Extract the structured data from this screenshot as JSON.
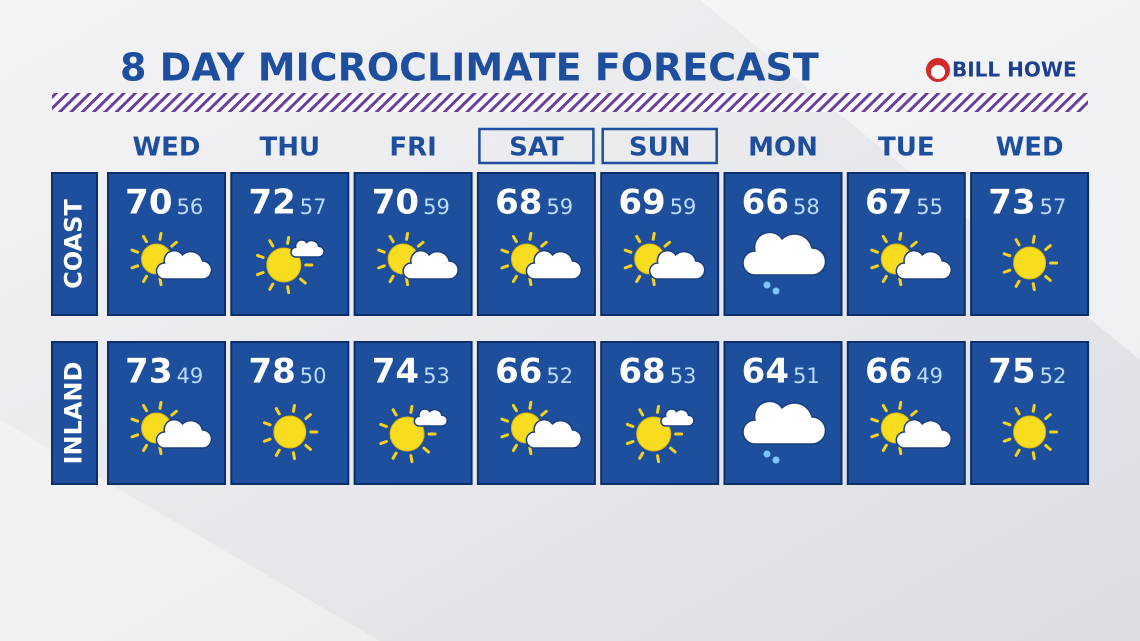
{
  "header": {
    "title": "8 DAY MICROCLIMATE FORECAST",
    "logo": "BILL HOWE"
  },
  "days": [
    "WED",
    "THU",
    "FRI",
    "SAT",
    "SUN",
    "MON",
    "TUE",
    "WED"
  ],
  "rows": [
    {
      "label": "COAST",
      "temps": [
        {
          "high": 70,
          "low": 56
        },
        {
          "high": 72,
          "low": 57
        },
        {
          "high": 70,
          "low": 59
        },
        {
          "high": 68,
          "low": 59
        },
        {
          "high": 69,
          "low": 59
        },
        {
          "high": 66,
          "low": 58
        },
        {
          "high": 67,
          "low": 55
        },
        {
          "high": 73,
          "low": 57
        }
      ]
    },
    {
      "label": "INLAND",
      "temps": [
        {
          "high": 73,
          "low": 49
        },
        {
          "high": 78,
          "low": 50
        },
        {
          "high": 74,
          "low": 53
        },
        {
          "high": 66,
          "low": 52
        },
        {
          "high": 68,
          "low": 53
        },
        {
          "high": 64,
          "low": 51
        },
        {
          "high": 66,
          "low": 49
        },
        {
          "high": 75,
          "low": 52
        }
      ]
    }
  ]
}
